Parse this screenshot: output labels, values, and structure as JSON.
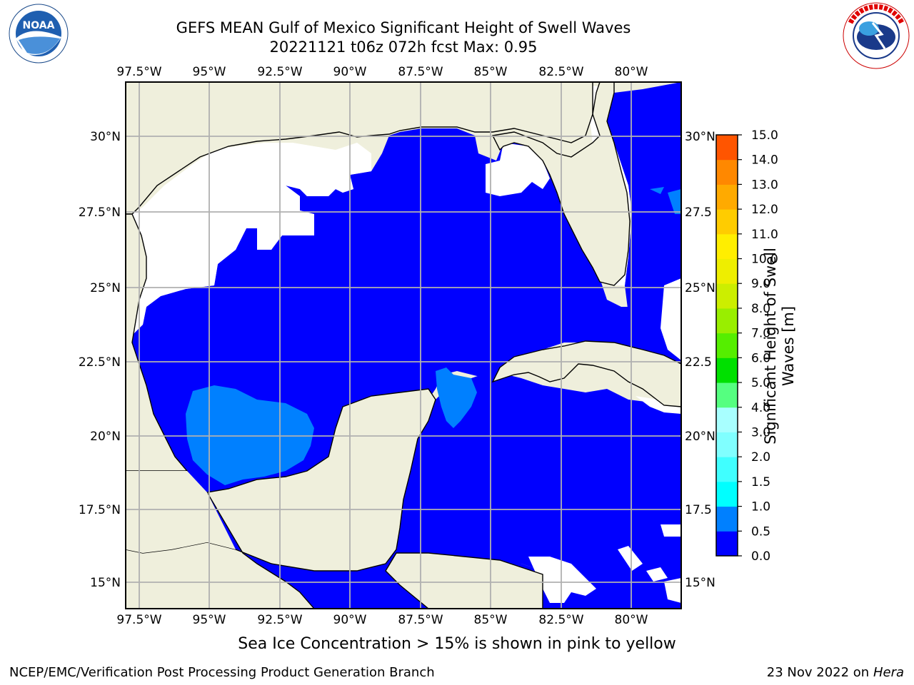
{
  "header": {
    "title_line1": "GEFS MEAN Gulf of Mexico Significant Height of Swell Waves",
    "title_line2": "20221121 t06z 072h fcst   Max: 0.95"
  },
  "logos": {
    "left": "NOAA",
    "left_ring_text": "NATIONAL OCEANIC AND ATMOSPHERIC ADMINISTRATION · U.S. DEPARTMENT OF COMMERCE",
    "right_ring_text": "NATIONAL WEATHER SERVICE"
  },
  "map": {
    "lon_labels": [
      "97.5°W",
      "95°W",
      "92.5°W",
      "90°W",
      "87.5°W",
      "85°W",
      "82.5°W",
      "80°W"
    ],
    "lat_labels_left": [
      "30°N",
      "27.5°N",
      "25°N",
      "22.5°N",
      "20°N",
      "17.5°N",
      "15°N"
    ],
    "lat_labels_right": [
      "30°N",
      "27.5",
      "25°N",
      "22.5",
      "20°N",
      "17.5",
      "15°N"
    ],
    "colors": {
      "land": "#efefdc",
      "water_low": "#0000ff",
      "water_mid": "#0080ff",
      "grid": "#b0b0b0"
    }
  },
  "colorbar": {
    "label": "Significant Height of Swell Waves [m]",
    "ticks": [
      "15.0",
      "14.0",
      "13.0",
      "12.0",
      "11.0",
      "10.0",
      "9.0",
      "8.0",
      "7.0",
      "6.0",
      "5.0",
      "4.0",
      "3.0",
      "2.0",
      "1.5",
      "1.0",
      "0.5",
      "0.0"
    ],
    "colors": [
      "#0000ff",
      "#0080ff",
      "#00ffff",
      "#40ffff",
      "#80ffff",
      "#a8ffff",
      "#55ff80",
      "#00e000",
      "#55ee00",
      "#99ee00",
      "#ccee00",
      "#eeee00",
      "#ffee00",
      "#ffcc00",
      "#ffaa00",
      "#ff8800",
      "#ff5500",
      "#ff2200",
      "#ff0000"
    ]
  },
  "footer": {
    "sea_ice_note": "Sea Ice Concentration > 15% is shown in pink to yellow",
    "credit": "NCEP/EMC/Verification Post Processing Product Generation Branch",
    "date": "23 Nov 2022 on",
    "machine": "Hera"
  }
}
